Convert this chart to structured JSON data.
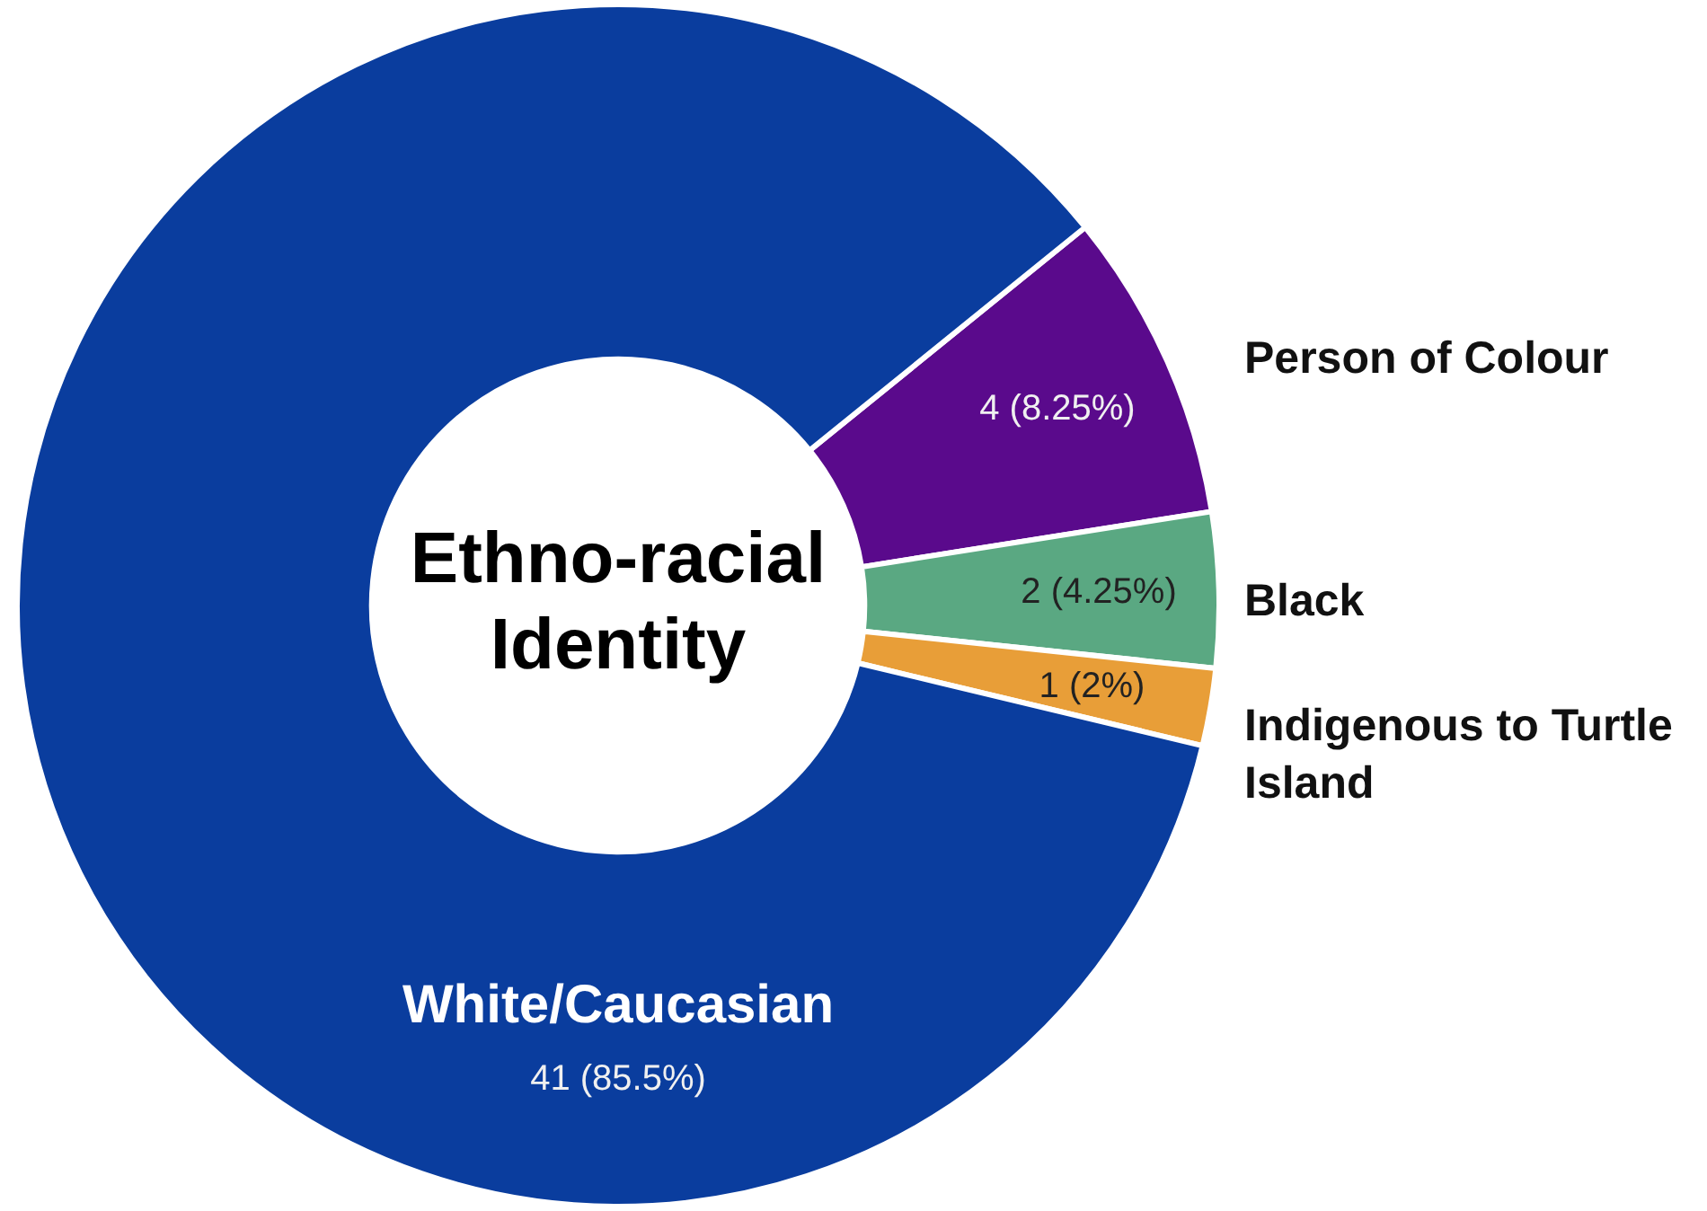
{
  "chart_data": {
    "type": "donut",
    "title": "Ethno-racial Identity",
    "categories": [
      "Person of Colour",
      "Black",
      "Indigenous to Turtle Island",
      "White/Caucasian"
    ],
    "values": [
      4,
      2,
      1,
      41
    ],
    "colors": [
      "#5a0a8c",
      "#5aa882",
      "#e89e38",
      "#0a3d9e"
    ],
    "value_labels": [
      "4 (8.25%)",
      "2 (4.25%)",
      "1 (2%)",
      "41 (85.5%)"
    ],
    "legend": false
  }
}
